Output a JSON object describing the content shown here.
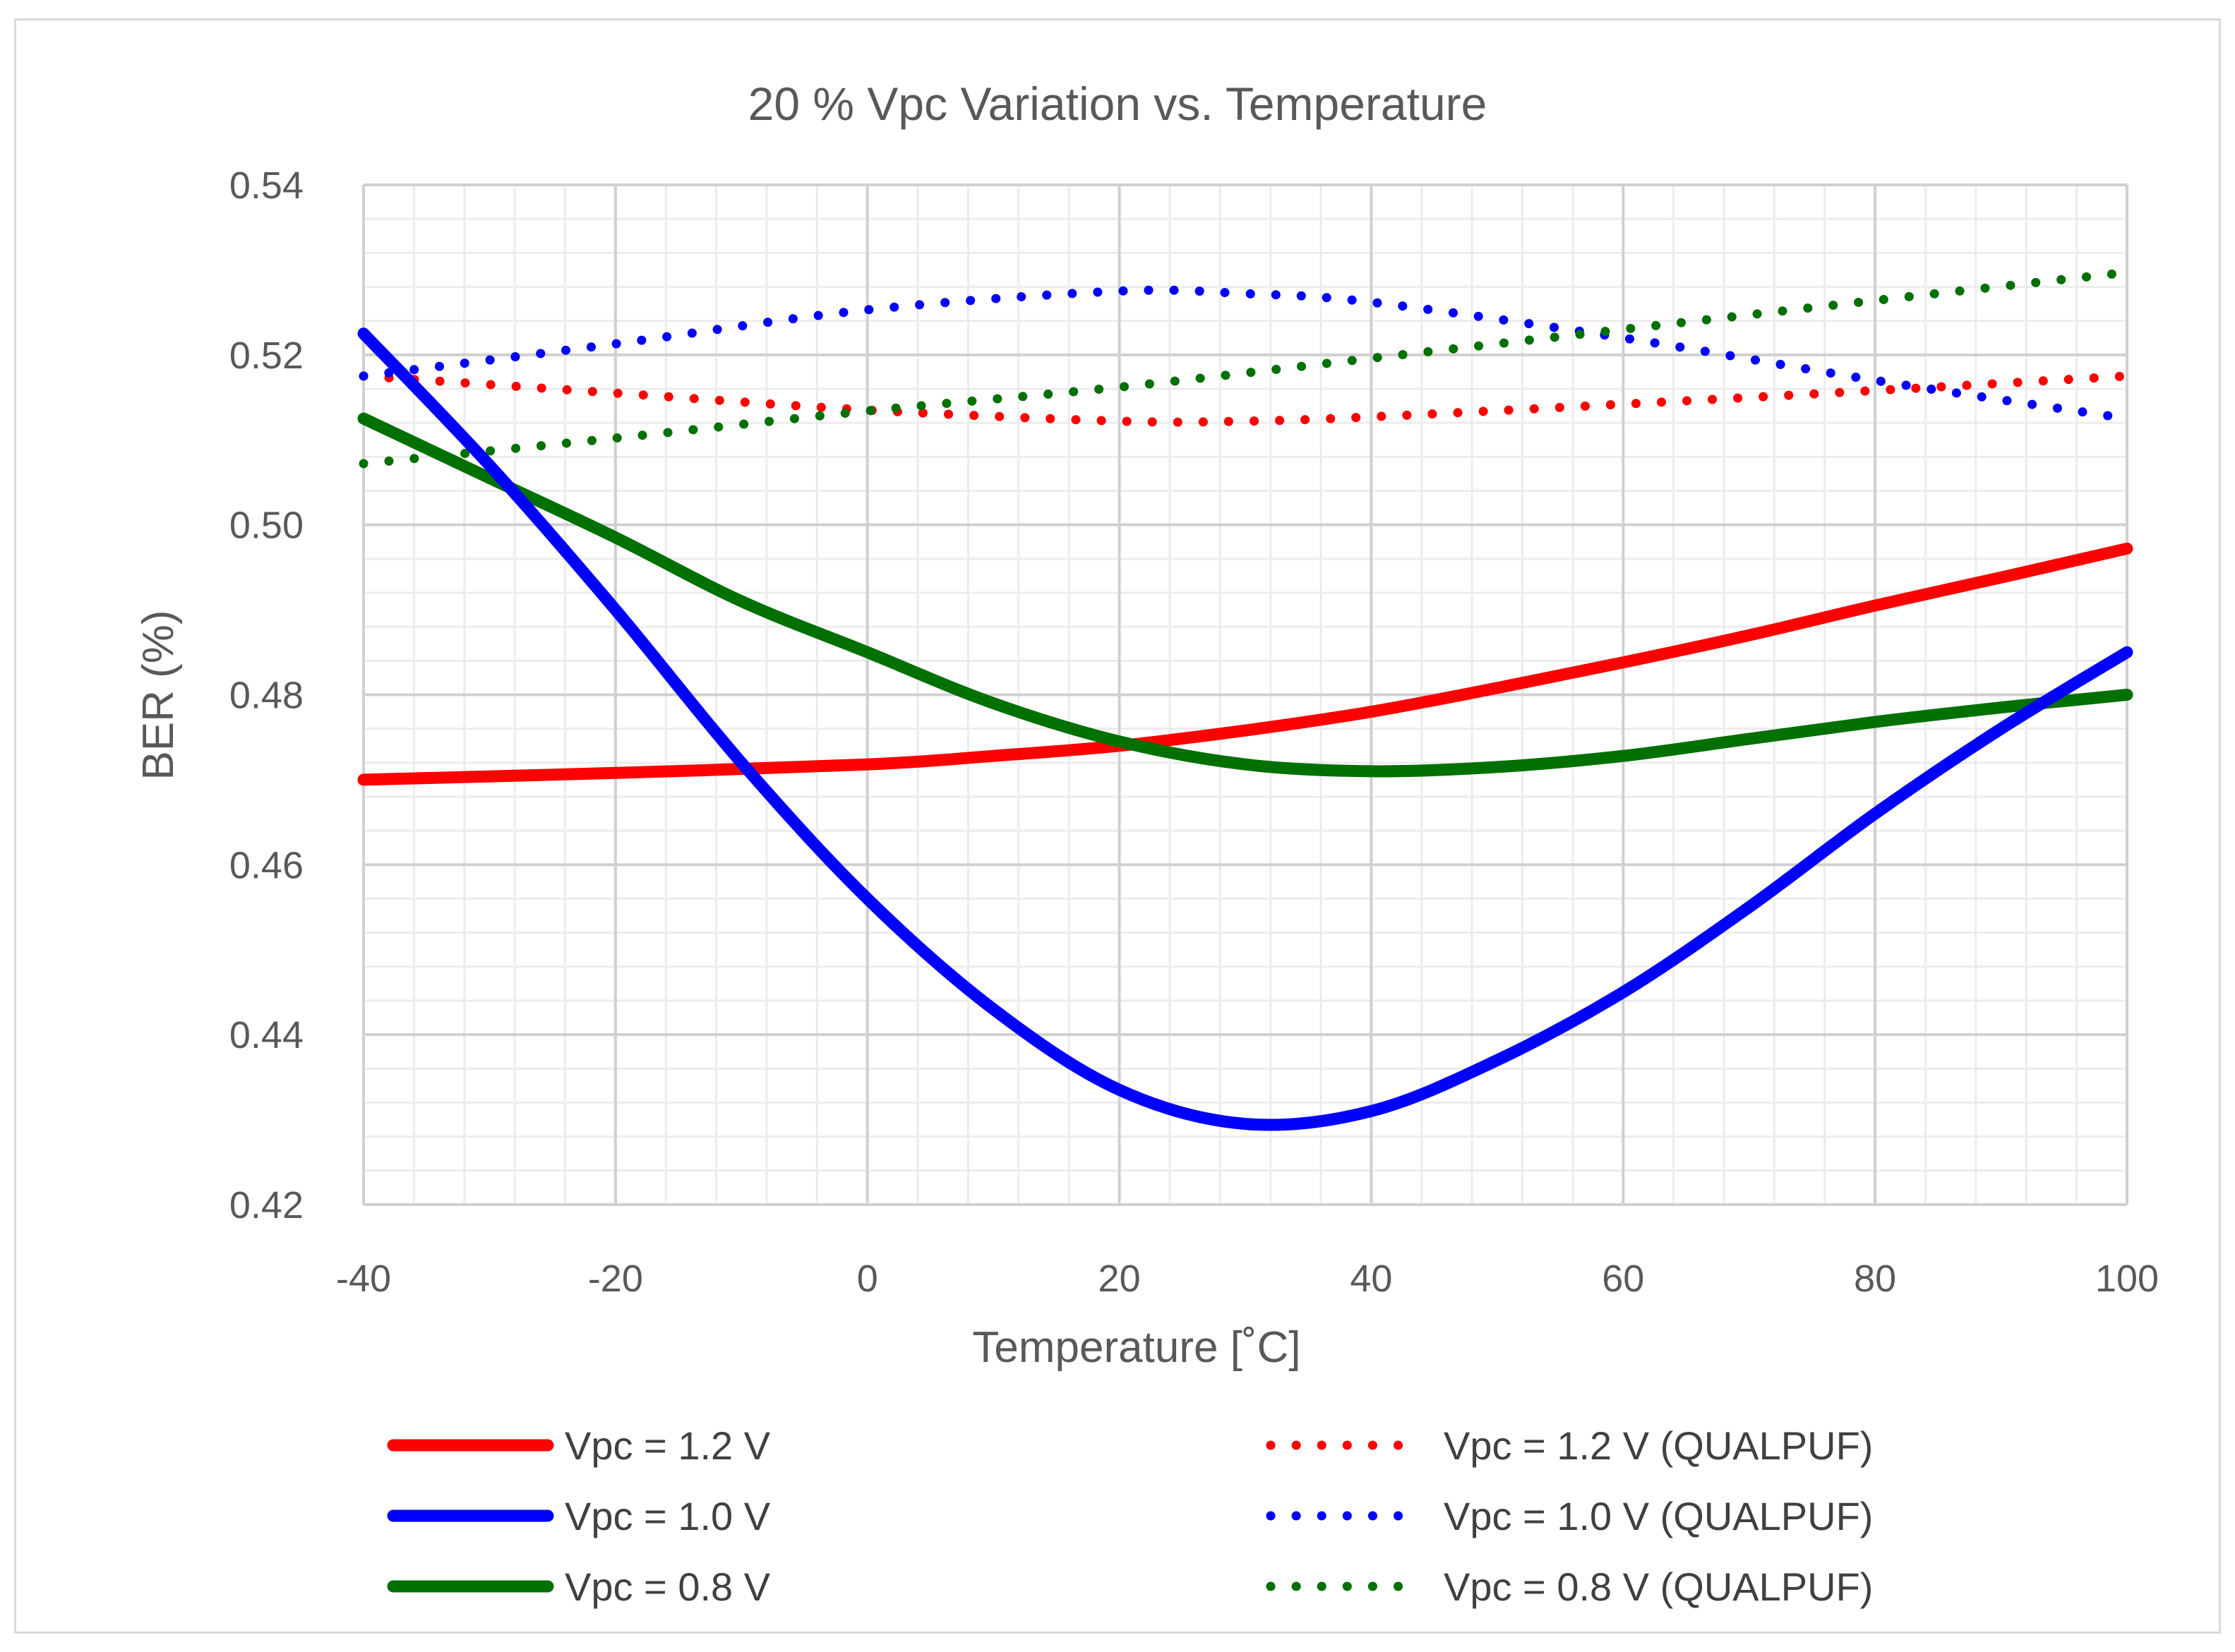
{
  "chart_data": {
    "type": "line",
    "title": "20 % Vpc Variation vs. Temperature",
    "xlabel": "Temperature [˚C]",
    "ylabel": "BER (%)",
    "xlim": [
      -40,
      100
    ],
    "ylim": [
      0.42,
      0.54
    ],
    "xticks": [
      "-40",
      "-20",
      "0",
      "20",
      "40",
      "60",
      "80",
      "100"
    ],
    "yticks": [
      "0.54",
      "0.52",
      "0.50",
      "0.48",
      "0.46",
      "0.44",
      "0.42"
    ],
    "grid": true,
    "legend_position": "bottom",
    "series": [
      {
        "name": "Vpc = 1.2 V",
        "color": "#ff0000",
        "style": "solid",
        "x": [
          -40,
          -20,
          0,
          10,
          20,
          30,
          40,
          50,
          60,
          70,
          80,
          90,
          100
        ],
        "y": [
          0.47,
          0.4708,
          0.4718,
          0.4728,
          0.474,
          0.4758,
          0.478,
          0.4808,
          0.4838,
          0.487,
          0.4905,
          0.4938,
          0.4972
        ]
      },
      {
        "name": "Vpc = 1.0 V",
        "color": "#0000ff",
        "style": "solid",
        "x": [
          -40,
          -30,
          -20,
          -10,
          0,
          10,
          20,
          30,
          40,
          50,
          60,
          70,
          80,
          90,
          100
        ],
        "y": [
          0.5225,
          0.507,
          0.49,
          0.472,
          0.456,
          0.443,
          0.4335,
          0.4295,
          0.431,
          0.437,
          0.445,
          0.455,
          0.466,
          0.476,
          0.485
        ]
      },
      {
        "name": "Vpc = 0.8 V",
        "color": "#007000",
        "style": "solid",
        "x": [
          -40,
          -30,
          -20,
          -10,
          0,
          10,
          20,
          30,
          40,
          50,
          60,
          70,
          80,
          90,
          100
        ],
        "y": [
          0.5125,
          0.5055,
          0.4985,
          0.491,
          0.485,
          0.479,
          0.4745,
          0.4718,
          0.471,
          0.4715,
          0.4728,
          0.4748,
          0.4768,
          0.4785,
          0.48
        ]
      },
      {
        "name": "Vpc = 1.2 V (QUALPUF)",
        "color": "#ff0000",
        "style": "dotted",
        "x": [
          -40,
          -20,
          0,
          20,
          30,
          40,
          60,
          80,
          100
        ],
        "y": [
          0.5175,
          0.5155,
          0.5135,
          0.5122,
          0.5122,
          0.5127,
          0.5142,
          0.5158,
          0.5175
        ]
      },
      {
        "name": "Vpc = 1.0 V (QUALPUF)",
        "color": "#0000ff",
        "style": "dotted",
        "x": [
          -40,
          -20,
          0,
          20,
          30,
          40,
          60,
          80,
          100
        ],
        "y": [
          0.5175,
          0.5213,
          0.5253,
          0.5275,
          0.5272,
          0.5262,
          0.522,
          0.517,
          0.5125
        ]
      },
      {
        "name": "Vpc = 0.8 V (QUALPUF)",
        "color": "#007000",
        "style": "dotted",
        "x": [
          -40,
          -20,
          0,
          20,
          40,
          60,
          80,
          100
        ],
        "y": [
          0.5072,
          0.5102,
          0.5134,
          0.5162,
          0.5196,
          0.523,
          0.5264,
          0.5297
        ]
      }
    ]
  }
}
